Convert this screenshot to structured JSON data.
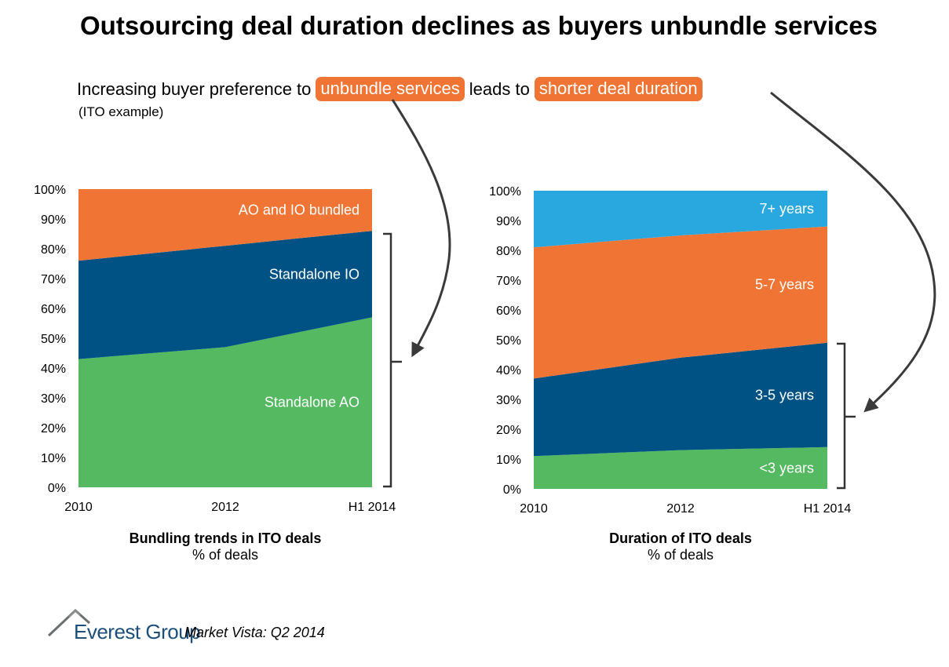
{
  "title": "Outsourcing deal duration declines as buyers unbundle services",
  "subtitle": {
    "part1": "Increasing buyer preference to",
    "highlight1": "unbundle services",
    "part2": "leads to",
    "highlight2": "shorter deal duration",
    "note": "(ITO example)"
  },
  "colors": {
    "green": "#54b961",
    "navy": "#005284",
    "orange": "#f07535",
    "lightblue": "#29a8e0"
  },
  "chart_data": [
    {
      "type": "area",
      "stacked": true,
      "title": "Bundling trends in ITO deals",
      "subtitle": "% of deals",
      "categories": [
        "2010",
        "2012",
        "H1 2014"
      ],
      "ylim": [
        0,
        100
      ],
      "yticks": [
        "0%",
        "10%",
        "20%",
        "30%",
        "40%",
        "50%",
        "60%",
        "70%",
        "80%",
        "90%",
        "100%"
      ],
      "series": [
        {
          "name": "Standalone AO",
          "values": [
            43,
            47,
            57
          ],
          "color": "#54b961"
        },
        {
          "name": "Standalone IO",
          "values": [
            33,
            34,
            29
          ],
          "color": "#005284"
        },
        {
          "name": "AO and IO bundled",
          "values": [
            24,
            19,
            14
          ],
          "color": "#f07535"
        }
      ]
    },
    {
      "type": "area",
      "stacked": true,
      "title": "Duration of ITO deals",
      "subtitle": "% of deals",
      "categories": [
        "2010",
        "2012",
        "H1 2014"
      ],
      "ylim": [
        0,
        100
      ],
      "yticks": [
        "0%",
        "10%",
        "20%",
        "30%",
        "40%",
        "50%",
        "60%",
        "70%",
        "80%",
        "90%",
        "100%"
      ],
      "series": [
        {
          "name": "<3 years",
          "values": [
            11,
            13,
            14
          ],
          "color": "#54b961"
        },
        {
          "name": "3-5 years",
          "values": [
            26,
            31,
            35
          ],
          "color": "#005284"
        },
        {
          "name": "5-7 years",
          "values": [
            44,
            41,
            39
          ],
          "color": "#f07535"
        },
        {
          "name": "7+ years",
          "values": [
            19,
            15,
            12
          ],
          "color": "#29a8e0"
        }
      ]
    }
  ],
  "footer": {
    "brand": "Everest Group",
    "tagline": "Market Vista: Q2 2014"
  }
}
